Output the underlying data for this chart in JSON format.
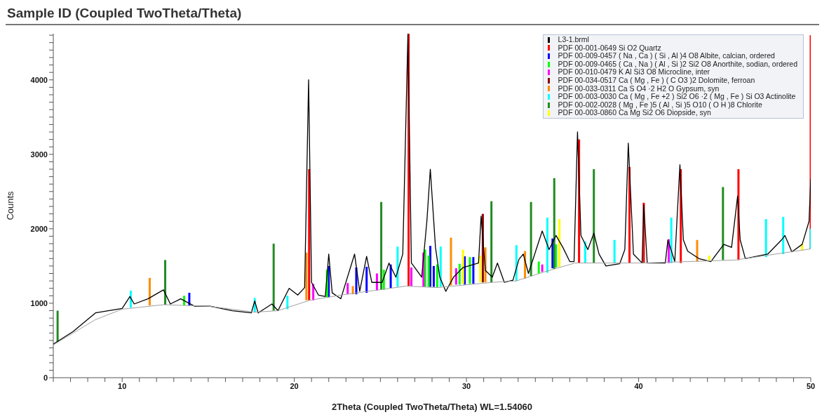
{
  "chart_data": {
    "type": "line",
    "title": "Sample ID (Coupled TwoTheta/Theta)",
    "xlabel": "2Theta (Coupled TwoTheta/Theta) WL=1.54060",
    "ylabel": "Counts",
    "legend": "top right",
    "xlim": [
      6,
      50
    ],
    "ylim": [
      0,
      4620
    ],
    "xticks": [
      {
        "value": 6,
        "label": null
      },
      {
        "value": 7,
        "label": null
      },
      {
        "value": 8,
        "label": null
      },
      {
        "value": 9,
        "label": null
      },
      10,
      {
        "value": 11,
        "label": null
      },
      {
        "value": 12,
        "label": null
      },
      {
        "value": 13,
        "label": null
      },
      {
        "value": 14,
        "label": null
      },
      {
        "value": 15,
        "label": null
      },
      {
        "value": 16,
        "label": null
      },
      {
        "value": 17,
        "label": null
      },
      {
        "value": 18,
        "label": null
      },
      {
        "value": 19,
        "label": null
      },
      20,
      {
        "value": 21,
        "label": null
      },
      {
        "value": 22,
        "label": null
      },
      {
        "value": 23,
        "label": null
      },
      {
        "value": 24,
        "label": null
      },
      {
        "value": 25,
        "label": null
      },
      {
        "value": 26,
        "label": null
      },
      {
        "value": 27,
        "label": null
      },
      {
        "value": 28,
        "label": null
      },
      {
        "value": 29,
        "label": null
      },
      30,
      {
        "value": 31,
        "label": null
      },
      {
        "value": 32,
        "label": null
      },
      {
        "value": 33,
        "label": null
      },
      {
        "value": 34,
        "label": null
      },
      {
        "value": 35,
        "label": null
      },
      {
        "value": 36,
        "label": null
      },
      {
        "value": 37,
        "label": null
      },
      {
        "value": 38,
        "label": null
      },
      {
        "value": 39,
        "label": null
      },
      40,
      {
        "value": 41,
        "label": null
      },
      {
        "value": 42,
        "label": null
      },
      {
        "value": 43,
        "label": null
      },
      {
        "value": 44,
        "label": null
      },
      {
        "value": 45,
        "label": null
      },
      {
        "value": 46,
        "label": null
      },
      {
        "value": 47,
        "label": null
      },
      {
        "value": 48,
        "label": null
      },
      {
        "value": 49,
        "label": null
      },
      50
    ],
    "yticks": [
      0,
      {
        "value": 100,
        "label": null
      },
      {
        "value": 200,
        "label": null
      },
      {
        "value": 300,
        "label": null
      },
      {
        "value": 400,
        "label": null
      },
      {
        "value": 500,
        "label": null
      },
      {
        "value": 600,
        "label": null
      },
      {
        "value": 700,
        "label": null
      },
      {
        "value": 800,
        "label": null
      },
      {
        "value": 900,
        "label": null
      },
      1000,
      {
        "value": 1100,
        "label": null
      },
      {
        "value": 1200,
        "label": null
      },
      {
        "value": 1300,
        "label": null
      },
      {
        "value": 1400,
        "label": null
      },
      {
        "value": 1500,
        "label": null
      },
      {
        "value": 1600,
        "label": null
      },
      {
        "value": 1700,
        "label": null
      },
      {
        "value": 1800,
        "label": null
      },
      {
        "value": 1900,
        "label": null
      },
      2000,
      {
        "value": 2100,
        "label": null
      },
      {
        "value": 2200,
        "label": null
      },
      {
        "value": 2300,
        "label": null
      },
      {
        "value": 2400,
        "label": null
      },
      {
        "value": 2500,
        "label": null
      },
      {
        "value": 2600,
        "label": null
      },
      {
        "value": 2700,
        "label": null
      },
      {
        "value": 2800,
        "label": null
      },
      {
        "value": 2900,
        "label": null
      },
      3000,
      {
        "value": 3100,
        "label": null
      },
      {
        "value": 3200,
        "label": null
      },
      {
        "value": 3300,
        "label": null
      },
      {
        "value": 3400,
        "label": null
      },
      {
        "value": 3500,
        "label": null
      },
      {
        "value": 3600,
        "label": null
      },
      {
        "value": 3700,
        "label": null
      },
      {
        "value": 3800,
        "label": null
      },
      {
        "value": 3900,
        "label": null
      },
      4000,
      {
        "value": 4100,
        "label": null
      },
      {
        "value": 4200,
        "label": null
      },
      {
        "value": 4300,
        "label": null
      },
      {
        "value": 4400,
        "label": null
      },
      {
        "value": 4500,
        "label": null
      },
      {
        "value": 4600,
        "label": null
      }
    ],
    "series": [
      {
        "name": "L3-1.brml",
        "color": "#000000",
        "x": [
          6.0,
          7.15,
          8.45,
          10.0,
          10.45,
          10.7,
          11.5,
          12.4,
          12.8,
          13.4,
          14.2,
          15.1,
          16.4,
          17.5,
          17.7,
          17.9,
          18.7,
          19.05,
          19.7,
          20.2,
          20.6,
          20.83,
          21.0,
          21.4,
          21.8,
          22.0,
          22.2,
          22.7,
          23.5,
          23.8,
          24.2,
          24.5,
          25.1,
          25.5,
          25.9,
          26.3,
          26.6,
          26.8,
          27.0,
          27.4,
          27.7,
          27.9,
          28.2,
          28.45,
          28.8,
          29.25,
          29.8,
          30.7,
          30.85,
          31.1,
          31.5,
          31.8,
          32.2,
          32.7,
          33.05,
          33.3,
          33.6,
          34.4,
          34.8,
          35.2,
          35.6,
          36.0,
          36.25,
          36.45,
          36.65,
          37.05,
          37.4,
          37.7,
          38.1,
          38.9,
          39.2,
          39.4,
          39.7,
          40.2,
          40.3,
          40.5,
          41.55,
          41.7,
          42.1,
          42.4,
          42.6,
          42.85,
          43.5,
          44.2,
          44.95,
          45.4,
          45.75,
          45.9,
          46.2,
          47.5,
          48.3,
          48.5,
          48.9,
          49.5,
          49.9,
          50.0
        ],
        "values": [
          450,
          620,
          870,
          930,
          1090,
          990,
          1060,
          1180,
          990,
          1060,
          960,
          960,
          900,
          870,
          1030,
          870,
          990,
          900,
          1200,
          1110,
          1210,
          4000,
          1280,
          1110,
          1090,
          1660,
          1140,
          1060,
          1660,
          1160,
          1630,
          1280,
          1280,
          1540,
          1350,
          1660,
          4620,
          1540,
          1480,
          1350,
          2100,
          2800,
          1750,
          1350,
          1160,
          1350,
          1480,
          1540,
          2170,
          1440,
          1350,
          1540,
          1280,
          1310,
          1590,
          1660,
          1400,
          1970,
          1720,
          1910,
          1750,
          1560,
          1560,
          3300,
          1910,
          1720,
          1940,
          1660,
          1500,
          1530,
          1720,
          3150,
          1660,
          1540,
          2320,
          1540,
          1540,
          1850,
          1560,
          2860,
          1850,
          1700,
          1600,
          1560,
          1790,
          1750,
          2440,
          1850,
          1600,
          1660,
          1850,
          1910,
          1690,
          1790,
          2100,
          2670
        ]
      },
      {
        "color": "#a0a0a0",
        "x": [
          6,
          8.45,
          10,
          12.4,
          15,
          17.7,
          19.05,
          20.9,
          23,
          26.5,
          28.3,
          31.5,
          32.9,
          34.5,
          36.3,
          40.3,
          45.6,
          50
        ],
        "values": [
          440,
          780,
          920,
          980,
          960,
          880,
          900,
          1040,
          1120,
          1230,
          1210,
          1280,
          1300,
          1420,
          1540,
          1540,
          1580,
          1730
        ]
      },
      {
        "name": "PDF 00-001-0649 Si O2 Quartz",
        "type": "bar",
        "color": "#ff0000",
        "x": [
          20.86,
          26.64,
          36.54,
          39.47,
          40.3,
          42.45,
          45.8,
          50.0
        ],
        "base": [
          1040,
          1230,
          1540,
          1540,
          1540,
          1540,
          1580,
          1730
        ],
        "values": [
          1760,
          3390,
          1660,
          1290,
          810,
          1260,
          1220,
          2870
        ]
      },
      {
        "name": "PDF 00-009-0457 ( Na , Ca ) ( Si , Al )4 O8 Albite, calcian, ordered",
        "type": "bar",
        "color": "#0000ff",
        "x": [
          13.9,
          22.0,
          23.6,
          24.2,
          25.6,
          27.9,
          28.1,
          29.9,
          30.4,
          35.0
        ],
        "base": [
          970,
          1080,
          1120,
          1140,
          1200,
          1220,
          1220,
          1250,
          1260,
          1470
        ],
        "values": [
          170,
          420,
          360,
          350,
          320,
          550,
          280,
          380,
          360,
          400
        ]
      },
      {
        "name": "PDF 00-009-0465 ( Ca , Na ) ( Al , Si )2 Si2 O8 Anorthite, sodian, ordered",
        "type": "bar",
        "color": "#00ff00",
        "x": [
          13.6,
          21.9,
          25.2,
          27.6,
          27.8,
          28.3,
          29.6,
          30.2,
          34.2,
          35.2
        ],
        "base": [
          970,
          1080,
          1180,
          1220,
          1220,
          1210,
          1250,
          1260,
          1400,
          1480
        ],
        "values": [
          130,
          370,
          270,
          500,
          420,
          310,
          280,
          360,
          160,
          310
        ]
      },
      {
        "name": "PDF 00-010-0479 K Al Si3 O8 Microcline, inter",
        "type": "bar",
        "color": "#ff00ff",
        "x": [
          21.1,
          23.1,
          24.8,
          26.8,
          27.5,
          29.4,
          34.4,
          41.75
        ],
        "base": [
          1040,
          1120,
          1170,
          1230,
          1220,
          1250,
          1420,
          1540
        ],
        "values": [
          220,
          150,
          230,
          250,
          460,
          220,
          100,
          320
        ]
      },
      {
        "name": "PDF 00-034-0517 Ca ( Mg , Fe ) ( C O3 )2 Dolomite, ferroan",
        "type": "bar",
        "color": "#8b0000",
        "x": [
          30.95
        ],
        "base": [
          1280
        ],
        "values": [
          920
        ]
      },
      {
        "name": "PDF 00-033-0311 Ca S O4 ·2 H2 O Gypsum, syn",
        "type": "bar",
        "color": "#ff8c00",
        "x": [
          11.6,
          20.7,
          23.4,
          29.1,
          31.1,
          33.4,
          43.4
        ],
        "base": [
          970,
          1040,
          1120,
          1240,
          1280,
          1330,
          1560
        ],
        "values": [
          370,
          640,
          110,
          640,
          470,
          370,
          290
        ]
      },
      {
        "name": "PDF 00-003-0030 Ca ( Mg , Fe +2 ) Si2 O6 ·2 ( Mg , Fe ) Si O3 Actinolite",
        "type": "bar",
        "color": "#00ffff",
        "x": [
          10.5,
          17.7,
          19.6,
          26.0,
          28.5,
          32.9,
          34.7,
          36.9,
          38.6,
          41.9,
          47.4,
          48.4,
          50.0
        ],
        "base": [
          940,
          880,
          920,
          1220,
          1220,
          1300,
          1410,
          1540,
          1540,
          1540,
          1620,
          1660,
          1730
        ],
        "values": [
          230,
          190,
          180,
          540,
          540,
          480,
          740,
          290,
          310,
          610,
          510,
          500,
          270
        ]
      },
      {
        "name": "PDF 00-002-0028 ( Mg , Fe )5 ( Al , Si )5 O10 ( O H )8 Chlorite",
        "type": "bar",
        "color": "#228b22",
        "x": [
          6.25,
          12.5,
          18.8,
          25.05,
          31.45,
          33.75,
          35.1,
          37.4,
          44.9
        ],
        "base": [
          480,
          980,
          900,
          1180,
          1280,
          1360,
          1460,
          1540,
          1580
        ],
        "values": [
          420,
          600,
          900,
          1180,
          1090,
          1000,
          1220,
          1260,
          980
        ]
      },
      {
        "name": "PDF 00-003-0860 Ca Mg Si2 O6 Diopside, syn",
        "type": "bar",
        "color": "#ffff00",
        "x": [
          29.8,
          30.8,
          35.4,
          44.1,
          49.5
        ],
        "base": [
          1260,
          1280,
          1490,
          1570,
          1710
        ],
        "values": [
          460,
          360,
          640,
          70,
          90
        ]
      }
    ]
  }
}
